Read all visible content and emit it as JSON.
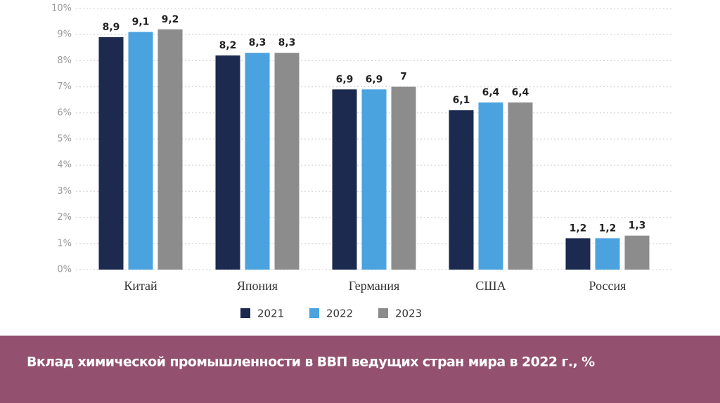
{
  "chart_data": {
    "type": "bar",
    "title": "Вклад химической промышленности в ВВП ведущих стран мира в 2022 г., %",
    "categories": [
      "Китай",
      "Япония",
      "Германия",
      "США",
      "Россия"
    ],
    "series": [
      {
        "name": "2021",
        "color": "#1b2a4e",
        "values": [
          8.9,
          8.2,
          6.9,
          6.1,
          1.2
        ],
        "value_labels": [
          "8,9",
          "8,2",
          "6,9",
          "6,1",
          "1,2"
        ]
      },
      {
        "name": "2022",
        "color": "#4aa3df",
        "values": [
          9.1,
          8.3,
          6.9,
          6.4,
          1.2
        ],
        "value_labels": [
          "9,1",
          "8,3",
          "6,9",
          "6,4",
          "1,2"
        ]
      },
      {
        "name": "2023",
        "color": "#8c8c8c",
        "values": [
          9.2,
          8.3,
          7,
          6.4,
          1.3
        ],
        "value_labels": [
          "9,2",
          "8,3",
          "7",
          "6,4",
          "1,3"
        ]
      }
    ],
    "ylim": [
      0,
      10
    ],
    "yticks": [
      {
        "value": 0,
        "label": "0%"
      },
      {
        "value": 1,
        "label": "1%"
      },
      {
        "value": 2,
        "label": "2%"
      },
      {
        "value": 3,
        "label": "3%"
      },
      {
        "value": 4,
        "label": "4%"
      },
      {
        "value": 5,
        "label": "5%"
      },
      {
        "value": 6,
        "label": "6%"
      },
      {
        "value": 7,
        "label": "7%"
      },
      {
        "value": 8,
        "label": "8%"
      },
      {
        "value": 9,
        "label": "9%"
      },
      {
        "value": 10,
        "label": "10%"
      }
    ],
    "grid": true
  }
}
